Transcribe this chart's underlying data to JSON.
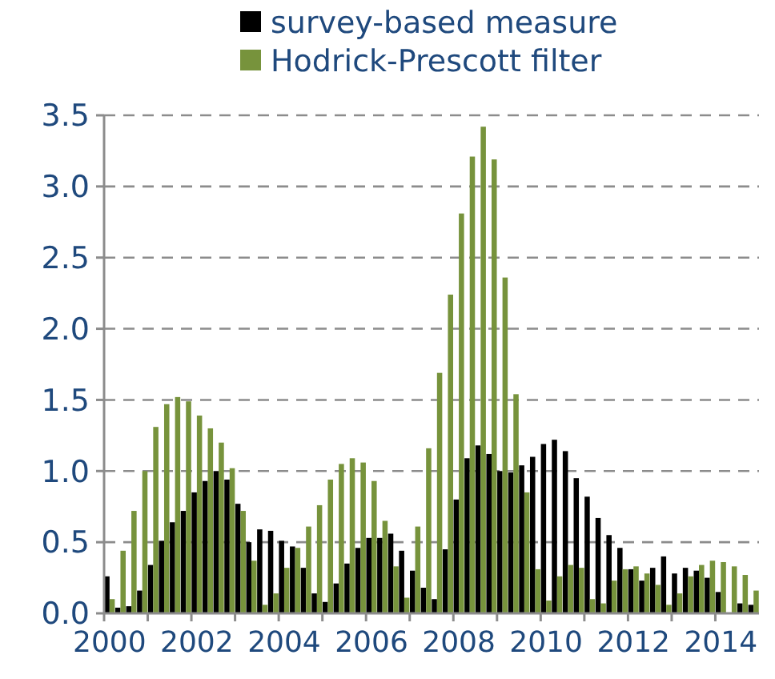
{
  "chart_data": {
    "type": "bar",
    "categories": [
      "2000",
      null,
      null,
      null,
      null,
      null,
      null,
      null,
      "2002",
      null,
      null,
      null,
      null,
      null,
      null,
      null,
      "2004",
      null,
      null,
      null,
      null,
      null,
      null,
      null,
      "2006",
      null,
      null,
      null,
      null,
      null,
      null,
      null,
      "2008",
      null,
      null,
      null,
      null,
      null,
      null,
      null,
      "2010",
      null,
      null,
      null,
      null,
      null,
      null,
      null,
      "2012",
      null,
      null,
      null,
      null,
      null,
      null,
      null,
      "2014",
      null,
      null,
      null
    ],
    "series": [
      {
        "name": "survey-based measure",
        "color": "#000000",
        "values": [
          0.26,
          0.04,
          0.05,
          0.16,
          0.34,
          0.51,
          0.64,
          0.72,
          0.85,
          0.93,
          1.0,
          0.94,
          0.77,
          0.5,
          0.59,
          0.58,
          0.51,
          0.47,
          0.32,
          0.14,
          0.08,
          0.21,
          0.35,
          0.46,
          0.53,
          0.53,
          0.56,
          0.44,
          0.3,
          0.18,
          0.1,
          0.45,
          0.8,
          1.09,
          1.18,
          1.12,
          1.0,
          0.99,
          1.04,
          1.1,
          1.19,
          1.22,
          1.14,
          0.95,
          0.82,
          0.67,
          0.55,
          0.46,
          0.31,
          0.23,
          0.32,
          0.4,
          0.28,
          0.32,
          0.3,
          0.25,
          0.15,
          0.0,
          0.07,
          0.06
        ]
      },
      {
        "name": "Hodrick-Prescott filter",
        "color": "#77933c",
        "values": [
          0.1,
          0.44,
          0.72,
          1.0,
          1.31,
          1.47,
          1.52,
          1.49,
          1.39,
          1.3,
          1.2,
          1.02,
          0.72,
          0.37,
          0.06,
          0.14,
          0.32,
          0.46,
          0.61,
          0.76,
          0.94,
          1.05,
          1.09,
          1.06,
          0.93,
          0.65,
          0.33,
          0.11,
          0.61,
          1.16,
          1.69,
          2.24,
          2.81,
          3.21,
          3.42,
          3.19,
          2.36,
          1.54,
          0.85,
          0.31,
          0.09,
          0.26,
          0.34,
          0.32,
          0.1,
          0.07,
          0.23,
          0.31,
          0.33,
          0.28,
          0.2,
          0.06,
          0.14,
          0.26,
          0.34,
          0.37,
          0.36,
          0.33,
          0.27,
          0.16
        ]
      }
    ],
    "ylim": [
      0,
      3.5
    ],
    "yticks": [
      {
        "value": 0,
        "label": "0.0"
      },
      {
        "value": 0.5,
        "label": "0.5"
      },
      {
        "value": 1,
        "label": "1.0"
      },
      {
        "value": 1.5,
        "label": "1.5"
      },
      {
        "value": 2,
        "label": "2.0"
      },
      {
        "value": 2.5,
        "label": "2.5"
      },
      {
        "value": 3,
        "label": "3.0"
      },
      {
        "value": 3.5,
        "label": "3.5"
      }
    ],
    "grid": "y",
    "legend": "top"
  }
}
